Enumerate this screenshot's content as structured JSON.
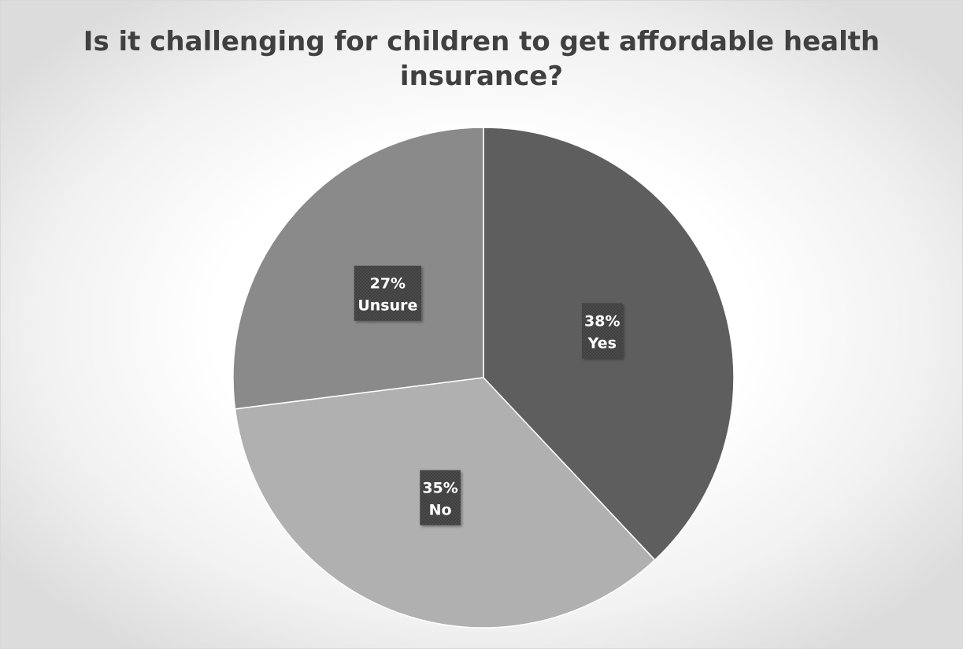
{
  "chart_data": {
    "type": "pie",
    "title": "Is it challenging for children to get affordable health insurance?",
    "categories": [
      "Yes",
      "No",
      "Unsure"
    ],
    "values": [
      38,
      35,
      27
    ],
    "value_labels": [
      "38%",
      "35%",
      "27%"
    ],
    "legend": "none",
    "colors": [
      "#5e5e5e",
      "#b0b0b0",
      "#8a8a8a"
    ],
    "label_box_color": "#404040"
  }
}
